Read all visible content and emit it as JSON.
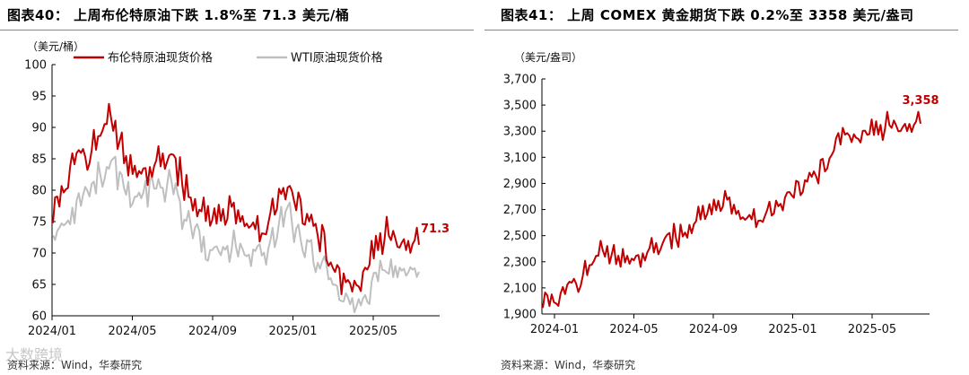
{
  "chart_data": [
    {
      "type": "line",
      "title": "图表40：  上周布伦特原油下跌 1.8%至 71.3 美元/桶",
      "ylabel": "（美元/桶）",
      "ylim": [
        60,
        100
      ],
      "yticks": [
        "60",
        "65",
        "70",
        "75",
        "80",
        "85",
        "90",
        "95",
        "100"
      ],
      "xticks": [
        "2024/01",
        "2024/05",
        "2024/09",
        "2025/01",
        "2025/05"
      ],
      "x": [
        "2024/01",
        "2024/02",
        "2024/03",
        "2024/04",
        "2024/05",
        "2024/06",
        "2024/07",
        "2024/08",
        "2024/09",
        "2024/10",
        "2024/11",
        "2024/12",
        "2025/01",
        "2025/02",
        "2025/03",
        "2025/04",
        "2025/05",
        "2025/06",
        "2025/07",
        "2025/08"
      ],
      "series": [
        {
          "name": "布伦特原油现货价格",
          "color": "#c00000",
          "values": [
            78,
            84,
            86,
            92,
            84,
            83,
            86,
            80,
            75,
            77,
            75,
            74,
            81,
            77,
            72,
            66,
            65,
            73,
            72,
            71.3
          ]
        },
        {
          "name": "WTI原油现货价格",
          "color": "#bfbfbf",
          "values": [
            73,
            77,
            80,
            85,
            79,
            80,
            81,
            75,
            69,
            71,
            70,
            70,
            77,
            72,
            68,
            62,
            61,
            68,
            67,
            67
          ]
        }
      ],
      "annotation": "71.3",
      "source": "资料来源：Wind，华泰研究"
    },
    {
      "type": "line",
      "title": "图表41：  上周 COMEX 黄金期货下跌 0.2%至 3358 美元/盎司",
      "ylabel": "（美元/盎司）",
      "ylim": [
        1900,
        3700
      ],
      "yticks": [
        "1,900",
        "2,100",
        "2,300",
        "2,500",
        "2,700",
        "2,900",
        "3,100",
        "3,300",
        "3,500",
        "3,700"
      ],
      "xticks": [
        "2024-01",
        "2024-05",
        "2024-09",
        "2025-01",
        "2025-05"
      ],
      "x": [
        "2024-01",
        "2024-02",
        "2024-03",
        "2024-04",
        "2024-05",
        "2024-06",
        "2024-07",
        "2024-08",
        "2024-09",
        "2024-10",
        "2024-11",
        "2024-12",
        "2025-01",
        "2025-02",
        "2025-03",
        "2025-04",
        "2025-05",
        "2025-06",
        "2025-07",
        "2025-08"
      ],
      "series": [
        {
          "name": "COMEX黄金期货",
          "color": "#c00000",
          "values": [
            2060,
            2040,
            2180,
            2400,
            2340,
            2340,
            2450,
            2520,
            2640,
            2780,
            2650,
            2650,
            2760,
            2900,
            3000,
            3300,
            3250,
            3340,
            3340,
            3358
          ]
        }
      ],
      "annotation": "3,358",
      "source": "资料来源：Wind，华泰研究"
    }
  ],
  "watermark": "大数跨境"
}
